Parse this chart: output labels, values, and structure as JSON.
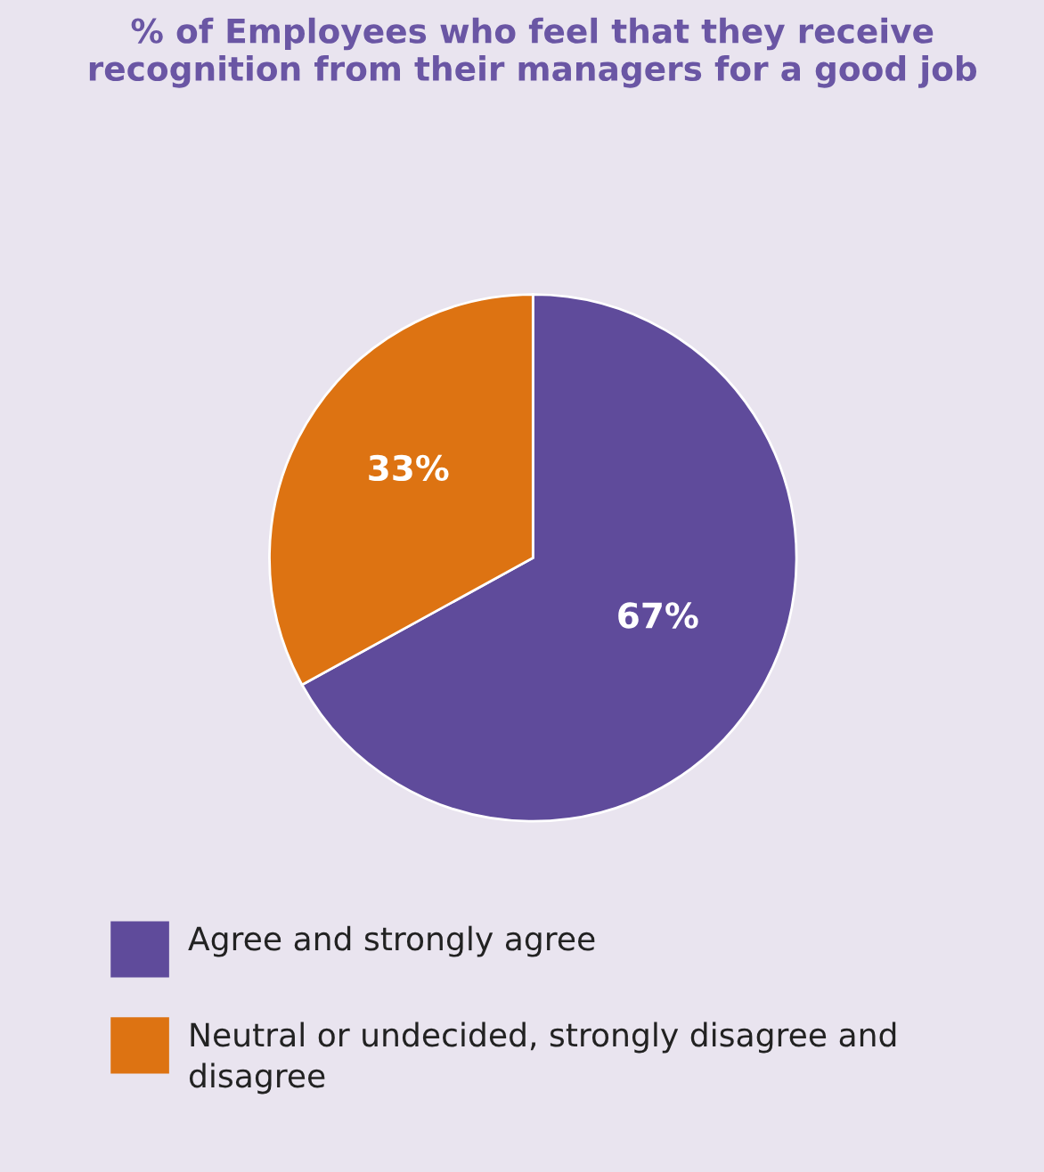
{
  "chart_data": {
    "type": "pie",
    "title": "% of Employees who feel that they receive recognition from their managers for a good job",
    "categories": [
      "Agree and strongly agree",
      "Neutral or undecided, strongly disagree and disagree"
    ],
    "values": [
      67,
      33
    ],
    "colors": [
      "#5f4b9b",
      "#dd7312"
    ],
    "value_labels": [
      "67%",
      "33%"
    ],
    "legend": "bottom"
  }
}
